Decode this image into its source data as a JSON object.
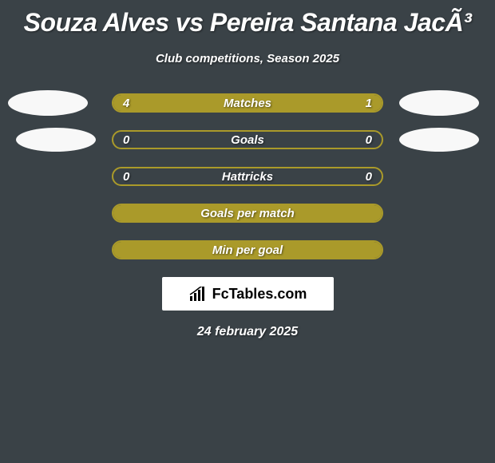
{
  "title": "Souza Alves vs Pereira Santana JacÃ³",
  "subtitle": "Club competitions, Season 2025",
  "date": "24 february 2025",
  "logo_text": "FcTables.com",
  "colors": {
    "background": "#3a4247",
    "bar_border": "#aa9a2a",
    "bar_fill": "#aa9a2a",
    "text": "#ffffff",
    "badge": "#f8f8f8",
    "logo_bg": "#ffffff"
  },
  "stats": [
    {
      "label": "Matches",
      "left_value": "4",
      "right_value": "1",
      "left_fill_pct": 80,
      "right_fill_pct": 20,
      "show_left_badge": true,
      "show_right_badge": true,
      "badge_variant": 1
    },
    {
      "label": "Goals",
      "left_value": "0",
      "right_value": "0",
      "left_fill_pct": 0,
      "right_fill_pct": 0,
      "show_left_badge": true,
      "show_right_badge": true,
      "badge_variant": 2
    },
    {
      "label": "Hattricks",
      "left_value": "0",
      "right_value": "0",
      "left_fill_pct": 0,
      "right_fill_pct": 0,
      "show_left_badge": false,
      "show_right_badge": false
    },
    {
      "label": "Goals per match",
      "left_value": "",
      "right_value": "",
      "left_fill_pct": 100,
      "right_fill_pct": 0,
      "show_left_badge": false,
      "show_right_badge": false
    },
    {
      "label": "Min per goal",
      "left_value": "",
      "right_value": "",
      "left_fill_pct": 100,
      "right_fill_pct": 0,
      "show_left_badge": false,
      "show_right_badge": false
    }
  ]
}
